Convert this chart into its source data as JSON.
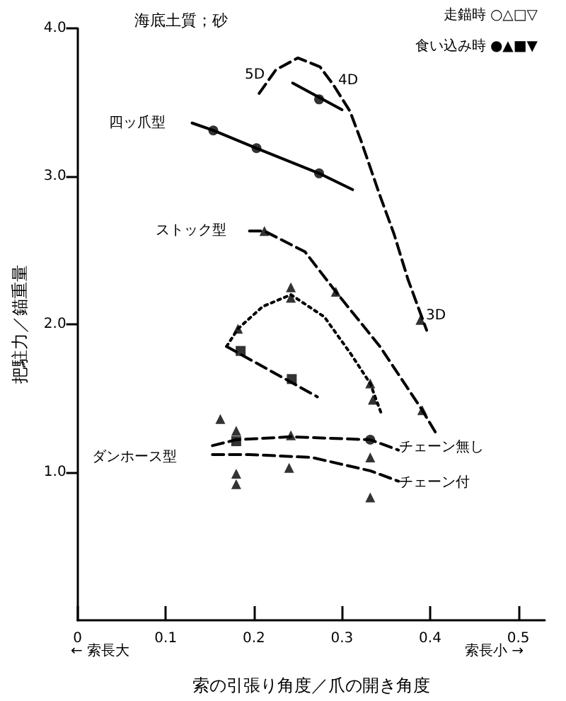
{
  "chart_data": {
    "type": "line",
    "title": "海底土質；砂",
    "xlabel": "索の引張り角度／爪の開き角度",
    "ylabel": "把駐力／錨重量",
    "xlim": [
      0,
      0.53
    ],
    "xticks": [
      0,
      0.1,
      0.2,
      0.3,
      0.4,
      0.5
    ],
    "ylim": [
      0,
      4
    ],
    "yticks": [
      {
        "value": 1,
        "label": "1.0"
      },
      {
        "value": 2,
        "label": "2.0"
      },
      {
        "value": 3,
        "label": "3.0"
      },
      {
        "value": 4,
        "label": "4.0"
      }
    ],
    "grid": false,
    "series": [
      {
        "color": "#000000",
        "line_style": "solid",
        "marker": "none",
        "x": [
          0.13,
          0.154,
          0.203,
          0.274,
          0.312
        ],
        "values": [
          3.36,
          3.31,
          3.19,
          3.02,
          2.91
        ]
      },
      {
        "type": "scatter",
        "color": "#000000",
        "marker": "circle",
        "x": [
          0.154,
          0.203,
          0.274
        ],
        "values": [
          3.31,
          3.19,
          3.02
        ]
      },
      {
        "color": "#000000",
        "line_style": "solid",
        "marker": "none",
        "x": [
          0.244,
          0.3
        ],
        "values": [
          3.63,
          3.45
        ]
      },
      {
        "type": "scatter",
        "color": "#000000",
        "marker": "circle",
        "x": [
          0.274
        ],
        "values": [
          3.52
        ]
      },
      {
        "color": "#000000",
        "line_style": "dashed",
        "marker": "none",
        "x": [
          0.206,
          0.225,
          0.25,
          0.275,
          0.29,
          0.309,
          0.321,
          0.343,
          0.359,
          0.375,
          0.396
        ],
        "values": [
          3.56,
          3.72,
          3.8,
          3.74,
          3.62,
          3.44,
          3.25,
          2.87,
          2.61,
          2.3,
          1.96
        ]
      },
      {
        "type": "scatter",
        "color": "#000000",
        "marker": "triangle",
        "x": [
          0.389
        ],
        "values": [
          2.03
        ]
      },
      {
        "color": "#000000",
        "line_style": "dashed",
        "marker": "none",
        "x": [
          0.195,
          0.212,
          0.258,
          0.293,
          0.343,
          0.391,
          0.408
        ],
        "values": [
          2.63,
          2.63,
          2.49,
          2.22,
          1.85,
          1.42,
          1.25
        ]
      },
      {
        "type": "scatter",
        "color": "#000000",
        "marker": "triangle",
        "x": [
          0.212,
          0.293,
          0.391
        ],
        "values": [
          2.63,
          2.22,
          1.42
        ]
      },
      {
        "color": "#000000",
        "line_style": "dotted",
        "marker": "none",
        "x": [
          0.169,
          0.182,
          0.21,
          0.242,
          0.28,
          0.31,
          0.332,
          0.345
        ],
        "values": [
          1.85,
          1.97,
          2.12,
          2.2,
          2.05,
          1.8,
          1.6,
          1.39
        ]
      },
      {
        "type": "scatter",
        "color": "#000000",
        "marker": "triangle",
        "x": [
          0.182,
          0.242,
          0.332,
          0.335
        ],
        "values": [
          1.97,
          2.18,
          1.6,
          1.49
        ]
      },
      {
        "type": "scatter",
        "color": "#000000",
        "marker": "triangle",
        "x": [
          0.242,
          0.162
        ],
        "values": [
          2.25,
          1.36
        ]
      },
      {
        "color": "#000000",
        "line_style": "dashed",
        "marker": "none",
        "x": [
          0.169,
          0.272
        ],
        "values": [
          1.85,
          1.51
        ]
      },
      {
        "type": "scatter",
        "color": "#000000",
        "marker": "square",
        "x": [
          0.185,
          0.243
        ],
        "values": [
          1.82,
          1.63
        ]
      },
      {
        "color": "#000000",
        "line_style": "dashed",
        "marker": "none",
        "x": [
          0.153,
          0.18,
          0.242,
          0.332,
          0.364
        ],
        "values": [
          1.18,
          1.22,
          1.24,
          1.22,
          1.15
        ]
      },
      {
        "type": "scatter",
        "color": "#000000",
        "marker": "triangle",
        "x": [
          0.18,
          0.242,
          0.332
        ],
        "values": [
          1.28,
          1.25,
          1.1
        ]
      },
      {
        "type": "scatter",
        "color": "#000000",
        "marker": "square",
        "x": [
          0.18
        ],
        "values": [
          1.21
        ]
      },
      {
        "type": "scatter",
        "color": "#000000",
        "marker": "circle",
        "x": [
          0.332
        ],
        "values": [
          1.22
        ]
      },
      {
        "color": "#000000",
        "line_style": "dashed",
        "marker": "none",
        "x": [
          0.153,
          0.195,
          0.266,
          0.332,
          0.364
        ],
        "values": [
          1.12,
          1.12,
          1.1,
          1.01,
          0.94
        ]
      },
      {
        "type": "scatter",
        "color": "#000000",
        "marker": "triangle",
        "x": [
          0.18,
          0.18,
          0.24,
          0.332
        ],
        "values": [
          0.99,
          0.92,
          1.03,
          0.83
        ]
      }
    ],
    "annotations": [
      "5D",
      "4D",
      "3D",
      "四ッ爪型",
      "ストック型",
      "ダンホース型",
      "チェーン無し",
      "チェーン付",
      "走錨時 ○△□▽",
      "食い込み時 ●▲■▼",
      "← 索長大",
      "索長小 →"
    ]
  }
}
